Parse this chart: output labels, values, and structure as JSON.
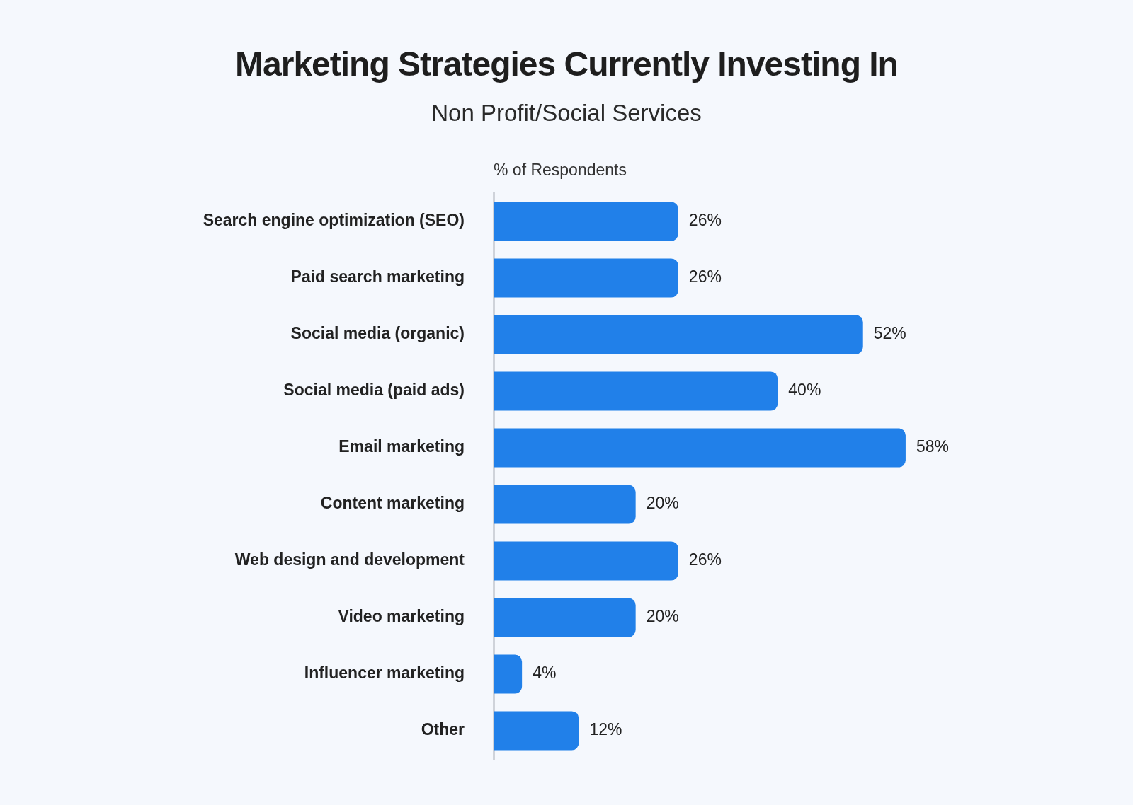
{
  "chart_data": {
    "type": "bar",
    "orientation": "horizontal",
    "title": "Marketing Strategies Currently Investing In",
    "subtitle": "Non Profit/Social Services",
    "xlabel": "% of Respondents",
    "categories": [
      "Search engine optimization (SEO)",
      "Paid search marketing",
      "Social media (organic)",
      "Social media (paid ads)",
      "Email marketing",
      "Content marketing",
      "Web design and development",
      "Video marketing",
      "Influencer marketing",
      "Other"
    ],
    "values": [
      26,
      26,
      52,
      40,
      58,
      20,
      26,
      20,
      4,
      12
    ],
    "value_labels": [
      "26%",
      "26%",
      "52%",
      "40%",
      "58%",
      "20%",
      "26%",
      "20%",
      "4%",
      "12%"
    ],
    "color": "#2180e9"
  }
}
